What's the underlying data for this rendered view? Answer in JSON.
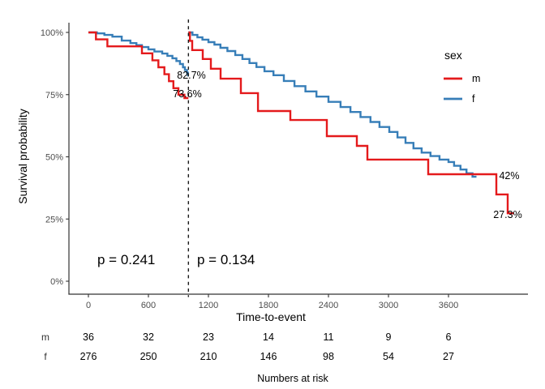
{
  "chart_data": {
    "type": "line",
    "subtype": "kaplan-meier-survival-step-curves-with-landmark-analysis",
    "title": "",
    "xlabel": "Time-to-event",
    "ylabel": "Survival probability",
    "xlim": [
      -195,
      4395
    ],
    "ylim": [
      0,
      100
    ],
    "grid": false,
    "x_ticks": [
      {
        "value": 0,
        "label": "0"
      },
      {
        "value": 600,
        "label": "600"
      },
      {
        "value": 1200,
        "label": "1200"
      },
      {
        "value": 1800,
        "label": "1800"
      },
      {
        "value": 2400,
        "label": "2400"
      },
      {
        "value": 3000,
        "label": "3000"
      },
      {
        "value": 3600,
        "label": "3600"
      }
    ],
    "y_ticks": [
      {
        "value": 0,
        "label": "0%"
      },
      {
        "value": 25,
        "label": "25%"
      },
      {
        "value": 50,
        "label": "50%"
      },
      {
        "value": 75,
        "label": "75%"
      },
      {
        "value": 100,
        "label": "100%"
      }
    ],
    "landmark": {
      "time": 1000,
      "line_style": "dashed",
      "color": "#1a1a1a"
    },
    "p_values": [
      {
        "text": "p = 0.241",
        "region": "before-landmark"
      },
      {
        "text": "p = 0.134",
        "region": "after-landmark"
      }
    ],
    "legend": {
      "title": "sex",
      "position": "right",
      "items": [
        {
          "label": "m",
          "color": "#E41A1C"
        },
        {
          "label": "f",
          "color": "#377EB8"
        }
      ]
    },
    "series": [
      {
        "name": "f",
        "segment": "pre-landmark",
        "color": "#377EB8",
        "points": [
          [
            0,
            100
          ],
          [
            85,
            99.6
          ],
          [
            160,
            99.0
          ],
          [
            240,
            98.3
          ],
          [
            333,
            96.7
          ],
          [
            420,
            95.7
          ],
          [
            480,
            94.9
          ],
          [
            535,
            94.1
          ],
          [
            600,
            93.2
          ],
          [
            660,
            92.3
          ],
          [
            738,
            91.5
          ],
          [
            790,
            90.6
          ],
          [
            840,
            89.6
          ],
          [
            880,
            88.5
          ],
          [
            915,
            87.3
          ],
          [
            945,
            86.0
          ],
          [
            965,
            84.9
          ],
          [
            985,
            83.8
          ],
          [
            995,
            82.7
          ],
          [
            1000,
            82.7
          ]
        ]
      },
      {
        "name": "f",
        "segment": "post-landmark",
        "color": "#377EB8",
        "points": [
          [
            1000,
            100
          ],
          [
            1040,
            99.0
          ],
          [
            1090,
            98.0
          ],
          [
            1140,
            97.1
          ],
          [
            1200,
            96.1
          ],
          [
            1260,
            95.1
          ],
          [
            1320,
            93.8
          ],
          [
            1390,
            92.5
          ],
          [
            1468,
            90.9
          ],
          [
            1540,
            89.3
          ],
          [
            1610,
            87.7
          ],
          [
            1680,
            86.1
          ],
          [
            1760,
            84.4
          ],
          [
            1850,
            82.8
          ],
          [
            1954,
            80.5
          ],
          [
            2060,
            78.4
          ],
          [
            2170,
            76.3
          ],
          [
            2280,
            74.2
          ],
          [
            2400,
            72.1
          ],
          [
            2521,
            70.0
          ],
          [
            2620,
            68.0
          ],
          [
            2720,
            66.0
          ],
          [
            2820,
            64.0
          ],
          [
            2910,
            62.0
          ],
          [
            3008,
            60.0
          ],
          [
            3090,
            57.8
          ],
          [
            3170,
            55.6
          ],
          [
            3250,
            53.4
          ],
          [
            3332,
            51.7
          ],
          [
            3420,
            50.3
          ],
          [
            3510,
            48.9
          ],
          [
            3600,
            47.9
          ],
          [
            3656,
            46.4
          ],
          [
            3720,
            44.9
          ],
          [
            3780,
            43.4
          ],
          [
            3840,
            42.0
          ],
          [
            3880,
            42.0
          ]
        ]
      },
      {
        "name": "m",
        "segment": "pre-landmark",
        "color": "#E41A1C",
        "points": [
          [
            0,
            100
          ],
          [
            75,
            97.2
          ],
          [
            190,
            94.4
          ],
          [
            535,
            91.6
          ],
          [
            640,
            88.8
          ],
          [
            700,
            86.0
          ],
          [
            760,
            83.2
          ],
          [
            805,
            80.4
          ],
          [
            850,
            77.6
          ],
          [
            900,
            75.0
          ],
          [
            960,
            73.6
          ],
          [
            1000,
            73.6
          ]
        ]
      },
      {
        "name": "m",
        "segment": "post-landmark",
        "color": "#E41A1C",
        "points": [
          [
            1000,
            100
          ],
          [
            1015,
            96.6
          ],
          [
            1038,
            92.9
          ],
          [
            1143,
            89.3
          ],
          [
            1224,
            85.4
          ],
          [
            1322,
            81.4
          ],
          [
            1524,
            75.6
          ],
          [
            1695,
            68.4
          ],
          [
            2019,
            64.8
          ],
          [
            2384,
            58.3
          ],
          [
            2684,
            54.4
          ],
          [
            2789,
            48.9
          ],
          [
            3397,
            43.0
          ],
          [
            4078,
            34.9
          ],
          [
            4192,
            27.3
          ],
          [
            4250,
            27.3
          ]
        ]
      }
    ],
    "annotations": [
      {
        "text": "82.7%",
        "series": "f",
        "at_time": 1000,
        "meaning": "f survival at landmark"
      },
      {
        "text": "73.6%",
        "series": "m",
        "at_time": 1000,
        "meaning": "m survival at landmark"
      },
      {
        "text": "42%",
        "series": "f",
        "at_time": 3860,
        "meaning": "f survival at end of follow-up"
      },
      {
        "text": "27.3%",
        "series": "m",
        "at_time": 4192,
        "meaning": "m survival at end of follow-up"
      }
    ],
    "numbers_at_risk": {
      "title": "Numbers at risk",
      "times": [
        0,
        600,
        1200,
        1800,
        2400,
        3000,
        3600
      ],
      "rows": [
        {
          "label": "m",
          "values": [
            36,
            32,
            23,
            14,
            11,
            9,
            6
          ]
        },
        {
          "label": "f",
          "values": [
            276,
            250,
            210,
            146,
            98,
            54,
            27
          ]
        }
      ]
    }
  }
}
